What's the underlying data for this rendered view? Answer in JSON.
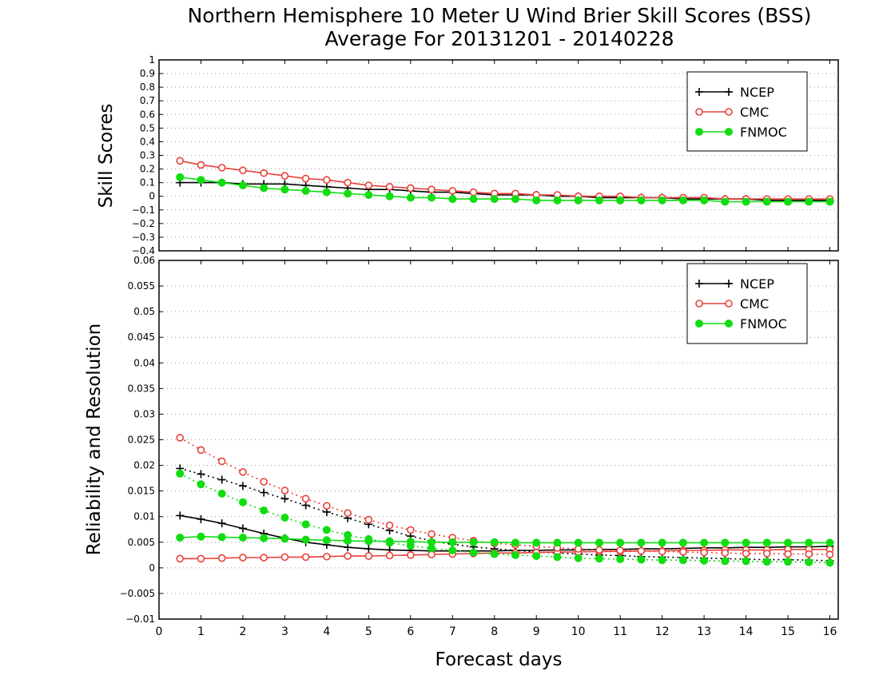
{
  "title_line1": "Northern Hemisphere 10 Meter U Wind Brier Skill Scores (BSS)",
  "title_line2": "Average For 20131201 - 20140228",
  "colors": {
    "NCEP": "#000000",
    "CMC": "#e8403a",
    "FNMOC": "#11dd11"
  },
  "chart_data": [
    {
      "type": "line",
      "ylabel": "Skill Scores",
      "xlim": [
        0,
        16.2
      ],
      "ylim": [
        -0.4,
        1
      ],
      "yticks": [
        "−0.4",
        "−0.3",
        "−0.2",
        "−0.1",
        "0",
        "0.1",
        "0.2",
        "0.3",
        "0.4",
        "0.5",
        "0.6",
        "0.7",
        "0.8",
        "0.9",
        "1"
      ],
      "ytick_values": [
        -0.4,
        -0.3,
        -0.2,
        -0.1,
        0,
        0.1,
        0.2,
        0.3,
        0.4,
        0.5,
        0.6,
        0.7,
        0.8,
        0.9,
        1
      ],
      "grid": true,
      "legend": "top-right",
      "legend_entries": [
        "NCEP",
        "CMC",
        "FNMOC"
      ],
      "x": [
        0.5,
        1,
        1.5,
        2,
        2.5,
        3,
        3.5,
        4,
        4.5,
        5,
        5.5,
        6,
        6.5,
        7,
        7.5,
        8,
        8.5,
        9,
        9.5,
        10,
        10.5,
        11,
        11.5,
        12,
        12.5,
        13,
        13.5,
        14,
        14.5,
        15,
        15.5,
        16
      ],
      "series": [
        {
          "name": "NCEP",
          "style": "solid",
          "marker": "plus",
          "values": [
            0.1,
            0.1,
            0.1,
            0.09,
            0.09,
            0.09,
            0.08,
            0.07,
            0.06,
            0.05,
            0.05,
            0.04,
            0.03,
            0.03,
            0.02,
            0.01,
            0.01,
            0.01,
            0.0,
            0.0,
            -0.01,
            -0.01,
            -0.01,
            -0.01,
            -0.02,
            -0.02,
            -0.02,
            -0.02,
            -0.03,
            -0.03,
            -0.03,
            -0.03
          ]
        },
        {
          "name": "CMC",
          "style": "solid",
          "marker": "circle-open",
          "values": [
            0.26,
            0.23,
            0.21,
            0.19,
            0.17,
            0.15,
            0.13,
            0.12,
            0.1,
            0.08,
            0.07,
            0.06,
            0.05,
            0.04,
            0.03,
            0.02,
            0.02,
            0.01,
            0.01,
            0.0,
            0.0,
            0.0,
            -0.01,
            -0.01,
            -0.01,
            -0.01,
            -0.02,
            -0.02,
            -0.02,
            -0.02,
            -0.02,
            -0.02
          ]
        },
        {
          "name": "FNMOC",
          "style": "solid",
          "marker": "circle-filled",
          "values": [
            0.14,
            0.12,
            0.1,
            0.08,
            0.06,
            0.05,
            0.04,
            0.03,
            0.02,
            0.01,
            0.0,
            -0.01,
            -0.01,
            -0.02,
            -0.02,
            -0.02,
            -0.02,
            -0.03,
            -0.03,
            -0.03,
            -0.03,
            -0.03,
            -0.03,
            -0.03,
            -0.03,
            -0.03,
            -0.04,
            -0.04,
            -0.04,
            -0.04,
            -0.04,
            -0.04
          ]
        }
      ]
    },
    {
      "type": "line",
      "ylabel": "Reliability and Resolution",
      "xlabel": "Forecast days",
      "xlim": [
        0,
        16.2
      ],
      "ylim": [
        -0.01,
        0.06
      ],
      "xticks": [
        "0",
        "1",
        "2",
        "3",
        "4",
        "5",
        "6",
        "7",
        "8",
        "9",
        "10",
        "11",
        "12",
        "13",
        "14",
        "15",
        "16"
      ],
      "xtick_values": [
        0,
        1,
        2,
        3,
        4,
        5,
        6,
        7,
        8,
        9,
        10,
        11,
        12,
        13,
        14,
        15,
        16
      ],
      "yticks": [
        "−0.01",
        "−0.005",
        "0",
        "0.005",
        "0.01",
        "0.015",
        "0.02",
        "0.025",
        "0.03",
        "0.035",
        "0.04",
        "0.045",
        "0.05",
        "0.055",
        "0.06"
      ],
      "ytick_values": [
        -0.01,
        -0.005,
        0,
        0.005,
        0.01,
        0.015,
        0.02,
        0.025,
        0.03,
        0.035,
        0.04,
        0.045,
        0.05,
        0.055,
        0.06
      ],
      "grid": true,
      "legend": "top-right",
      "legend_entries": [
        "NCEP",
        "CMC",
        "FNMOC"
      ],
      "x": [
        0.5,
        1,
        1.5,
        2,
        2.5,
        3,
        3.5,
        4,
        4.5,
        5,
        5.5,
        6,
        6.5,
        7,
        7.5,
        8,
        8.5,
        9,
        9.5,
        10,
        10.5,
        11,
        11.5,
        12,
        12.5,
        13,
        13.5,
        14,
        14.5,
        15,
        15.5,
        16
      ],
      "series": [
        {
          "name": "NCEP",
          "style": "solid",
          "marker": "plus",
          "values": [
            0.0102,
            0.0095,
            0.0087,
            0.0077,
            0.0067,
            0.0058,
            0.005,
            0.0045,
            0.004,
            0.0037,
            0.0035,
            0.0034,
            0.0033,
            0.0033,
            0.0033,
            0.0033,
            0.0034,
            0.0034,
            0.0035,
            0.0035,
            0.0036,
            0.0036,
            0.0037,
            0.0037,
            0.0038,
            0.0039,
            0.0039,
            0.004,
            0.004,
            0.0041,
            0.0041,
            0.0042
          ]
        },
        {
          "name": "NCEP",
          "style": "dotted",
          "marker": "plus",
          "values": [
            0.0194,
            0.0183,
            0.0172,
            0.016,
            0.0147,
            0.0135,
            0.0122,
            0.0109,
            0.0097,
            0.0085,
            0.0073,
            0.0062,
            0.0053,
            0.0046,
            0.0041,
            0.0037,
            0.0034,
            0.0031,
            0.0029,
            0.0027,
            0.0025,
            0.0024,
            0.0022,
            0.0021,
            0.002,
            0.0019,
            0.0018,
            0.0017,
            0.0016,
            0.0016,
            0.0015,
            0.0014
          ]
        },
        {
          "name": "CMC",
          "style": "solid",
          "marker": "circle-open",
          "values": [
            0.0018,
            0.0018,
            0.0019,
            0.002,
            0.002,
            0.0021,
            0.0021,
            0.0022,
            0.0023,
            0.0023,
            0.0024,
            0.0025,
            0.0026,
            0.0027,
            0.0028,
            0.0029,
            0.0029,
            0.003,
            0.0031,
            0.0031,
            0.0032,
            0.0032,
            0.0033,
            0.0033,
            0.0034,
            0.0034,
            0.0035,
            0.0035,
            0.0035,
            0.0036,
            0.0036,
            0.0036
          ]
        },
        {
          "name": "CMC",
          "style": "dotted",
          "marker": "circle-open",
          "values": [
            0.0254,
            0.023,
            0.0208,
            0.0187,
            0.0168,
            0.0151,
            0.0135,
            0.0121,
            0.0107,
            0.0094,
            0.0083,
            0.0074,
            0.0066,
            0.0059,
            0.0053,
            0.0048,
            0.0045,
            0.0042,
            0.0039,
            0.0037,
            0.0035,
            0.0034,
            0.0033,
            0.0032,
            0.0031,
            0.003,
            0.0029,
            0.0028,
            0.0028,
            0.0027,
            0.0027,
            0.0026
          ]
        },
        {
          "name": "FNMOC",
          "style": "solid",
          "marker": "circle-filled",
          "values": [
            0.0059,
            0.0061,
            0.006,
            0.0059,
            0.0058,
            0.0057,
            0.0055,
            0.0054,
            0.0053,
            0.0052,
            0.0052,
            0.0051,
            0.005,
            0.005,
            0.005,
            0.005,
            0.0049,
            0.0049,
            0.0049,
            0.0049,
            0.0049,
            0.0049,
            0.0049,
            0.0049,
            0.0049,
            0.0049,
            0.0049,
            0.0049,
            0.0049,
            0.0049,
            0.0049,
            0.0049
          ]
        },
        {
          "name": "FNMOC",
          "style": "dotted",
          "marker": "circle-filled",
          "values": [
            0.0184,
            0.0163,
            0.0145,
            0.0128,
            0.0112,
            0.0098,
            0.0085,
            0.0074,
            0.0064,
            0.0056,
            0.0049,
            0.0043,
            0.0038,
            0.0034,
            0.003,
            0.0027,
            0.0025,
            0.0023,
            0.0021,
            0.0019,
            0.0018,
            0.0017,
            0.0016,
            0.0015,
            0.0015,
            0.0014,
            0.0013,
            0.0013,
            0.0012,
            0.0012,
            0.0011,
            0.001
          ]
        }
      ]
    }
  ]
}
